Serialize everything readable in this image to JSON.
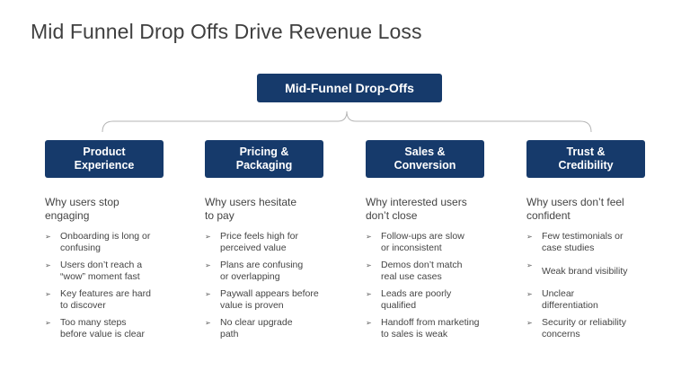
{
  "title": "Mid Funnel Drop Offs Drive Revenue Loss",
  "root": {
    "label": "Mid-Funnel Drop-Offs"
  },
  "columns": [
    {
      "label": "Product\nExperience",
      "subtitle": "Why users stop\nengaging",
      "items": [
        "Onboarding is long or\nconfusing",
        "Users don’t reach a\n“wow” moment fast",
        "Key features are hard\nto discover",
        "Too many steps\nbefore value is clear"
      ]
    },
    {
      "label": "Pricing &\nPackaging",
      "subtitle": "Why users hesitate\nto pay",
      "items": [
        "Price feels high for\nperceived value",
        "Plans are confusing\nor overlapping",
        "Paywall appears before\nvalue is proven",
        "No clear upgrade\npath"
      ]
    },
    {
      "label": "Sales &\nConversion",
      "subtitle": "Why interested users\ndon’t close",
      "items": [
        "Follow-ups are slow\nor inconsistent",
        "Demos don’t match\nreal use cases",
        "Leads are poorly\nqualified",
        "Handoff from marketing\nto sales is weak"
      ]
    },
    {
      "label": "Trust &\nCredibility",
      "subtitle": "Why users don’t feel\nconfident",
      "items": [
        "Few testimonials or\ncase studies",
        "Weak brand visibility",
        "Unclear\ndifferentiation",
        "Security or reliability\nconcerns"
      ]
    }
  ],
  "bullet_glyph": "➢",
  "colors": {
    "box": "#163a6b",
    "brace": "#b5b5b5",
    "title": "#3f3f3f",
    "text": "#444444"
  }
}
